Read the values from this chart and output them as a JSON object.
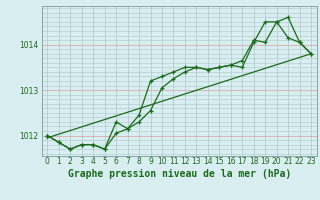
{
  "bg_color": "#d8eef0",
  "line_color": "#1a6b1a",
  "grid_color": "#aec8c8",
  "grid_color_red": "#d4a0a0",
  "axis_label_color": "#1a6b1a",
  "xlim": [
    -0.5,
    23.5
  ],
  "ylim": [
    1011.55,
    1014.85
  ],
  "yticks": [
    1012,
    1013,
    1014
  ],
  "xticks": [
    0,
    1,
    2,
    3,
    4,
    5,
    6,
    7,
    8,
    9,
    10,
    11,
    12,
    13,
    14,
    15,
    16,
    17,
    18,
    19,
    20,
    21,
    22,
    23
  ],
  "line1_x": [
    0,
    1,
    2,
    3,
    4,
    5,
    6,
    7,
    8,
    9,
    10,
    11,
    12,
    13,
    14,
    15,
    16,
    17,
    18,
    19,
    20,
    21,
    22,
    23
  ],
  "line1_y": [
    1012.0,
    1011.85,
    1011.7,
    1011.8,
    1011.8,
    1011.7,
    1012.05,
    1012.15,
    1012.3,
    1012.55,
    1013.05,
    1013.25,
    1013.4,
    1013.5,
    1013.45,
    1013.5,
    1013.55,
    1013.5,
    1014.05,
    1014.5,
    1014.5,
    1014.15,
    1014.05,
    1013.8
  ],
  "line2_x": [
    0,
    1,
    2,
    3,
    4,
    5,
    6,
    7,
    8,
    9,
    10,
    11,
    12,
    13,
    14,
    15,
    16,
    17,
    18,
    19,
    20,
    21,
    22,
    23
  ],
  "line2_y": [
    1012.0,
    1011.85,
    1011.7,
    1011.8,
    1011.8,
    1011.7,
    1012.3,
    1012.15,
    1012.45,
    1013.2,
    1013.3,
    1013.4,
    1013.5,
    1013.5,
    1013.45,
    1013.5,
    1013.55,
    1013.65,
    1014.1,
    1014.05,
    1014.5,
    1014.6,
    1014.05,
    1013.8
  ],
  "line3_x": [
    0,
    23
  ],
  "line3_y": [
    1011.95,
    1013.8
  ],
  "xlabel": "Graphe pression niveau de la mer (hPa)",
  "tick_fontsize": 5.5,
  "label_fontsize": 7.0
}
